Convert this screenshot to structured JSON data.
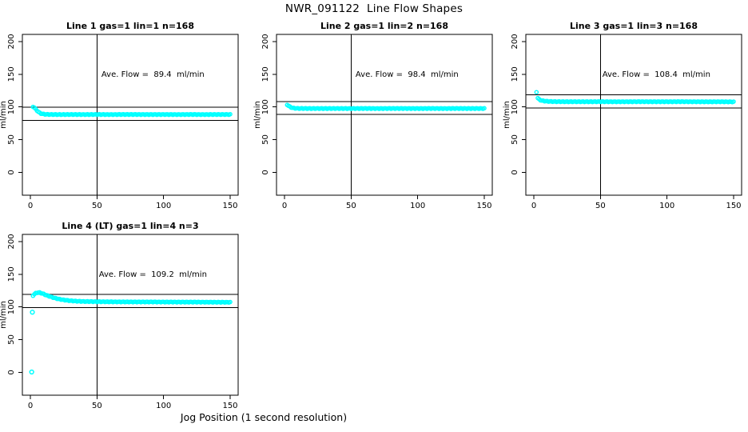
{
  "figure": {
    "title": "NWR_091122  Line Flow Shapes",
    "xlabel": "Jog Position (1 second resolution)",
    "colors": {
      "points": "#00FFFF",
      "axis": "#000000",
      "background": "#FFFFFF",
      "text": "#000000"
    }
  },
  "chart_data": [
    {
      "type": "scatter",
      "title": "Line 1 gas=1 lin=1 n=168",
      "ylabel": "ml/min",
      "ave_flow": 89.4,
      "ave_flow_label": "Ave. Flow =  89.4  ml/min",
      "x_ticks": [
        0,
        50,
        100,
        150
      ],
      "y_ticks": [
        0,
        50,
        100,
        150,
        200
      ],
      "xlim": [
        -6,
        156
      ],
      "ylim": [
        -35,
        211
      ],
      "vline_x": 50,
      "hlines": [
        99.4,
        79.4
      ],
      "points": {
        "x": [
          2,
          3,
          4,
          5,
          6,
          7,
          8,
          10,
          12,
          15,
          20,
          25,
          30,
          40,
          50,
          60,
          70,
          80,
          90,
          100,
          110,
          120,
          130,
          140,
          150
        ],
        "y": [
          100.5,
          99,
          96.5,
          94.5,
          92.5,
          91,
          90,
          89,
          88.7,
          88.5,
          88.4,
          88.4,
          88.5,
          88.4,
          88.5,
          88.4,
          88.5,
          88.5,
          88.4,
          88.5,
          88.4,
          88.5,
          88.4,
          88.5,
          88.5
        ]
      },
      "outliers": [],
      "below_scatter_offset": 2.1
    },
    {
      "type": "scatter",
      "title": "Line 2 gas=1 lin=2 n=168",
      "ylabel": "ml/min",
      "ave_flow": 98.4,
      "ave_flow_label": "Ave. Flow =  98.4  ml/min",
      "x_ticks": [
        0,
        50,
        100,
        150
      ],
      "y_ticks": [
        0,
        50,
        100,
        150,
        200
      ],
      "xlim": [
        -6,
        156
      ],
      "ylim": [
        -35,
        211
      ],
      "vline_x": 50,
      "hlines": [
        108.4,
        88.4
      ],
      "points": {
        "x": [
          2,
          3,
          4,
          5,
          6,
          7,
          8,
          10,
          12,
          15,
          20,
          25,
          30,
          40,
          50,
          60,
          70,
          80,
          90,
          100,
          110,
          120,
          130,
          140,
          150
        ],
        "y": [
          103.5,
          101.8,
          100.4,
          99.4,
          98.7,
          98.3,
          98,
          97.8,
          97.7,
          97.7,
          97.6,
          97.7,
          97.6,
          97.7,
          97.6,
          97.7,
          97.6,
          97.7,
          97.7,
          97.6,
          97.7,
          97.6,
          97.7,
          97.6,
          97.7
        ]
      },
      "outliers": [],
      "below_scatter_offset": 2.2
    },
    {
      "type": "scatter",
      "title": "Line 3 gas=1 lin=3 n=168",
      "ylabel": "ml/min",
      "ave_flow": 108.4,
      "ave_flow_label": "Ave. Flow =  108.4  ml/min",
      "x_ticks": [
        0,
        50,
        100,
        150
      ],
      "y_ticks": [
        0,
        50,
        100,
        150,
        200
      ],
      "xlim": [
        -6,
        156
      ],
      "ylim": [
        -35,
        211
      ],
      "vline_x": 50,
      "hlines": [
        118.4,
        98.4
      ],
      "points": {
        "x": [
          2,
          3,
          4,
          5,
          6,
          7,
          8,
          10,
          12,
          15,
          20,
          25,
          30,
          40,
          50,
          60,
          70,
          80,
          90,
          100,
          110,
          120,
          130,
          140,
          150
        ],
        "y": [
          123,
          113.5,
          111.5,
          110.5,
          109.8,
          109.4,
          109,
          108.6,
          108.4,
          108.2,
          108.1,
          108,
          108.1,
          108,
          108.1,
          108,
          108,
          108.1,
          108,
          108,
          108.1,
          108,
          107.9,
          108,
          107.8
        ]
      },
      "outliers": [],
      "below_scatter_offset": 2.1
    },
    {
      "type": "scatter",
      "title": "Line 4 (LT) gas=1 lin=4 n=3",
      "ylabel": "ml/min",
      "ave_flow": 109.2,
      "ave_flow_label": "Ave. Flow =  109.2  ml/min",
      "x_ticks": [
        0,
        50,
        100,
        150
      ],
      "y_ticks": [
        0,
        50,
        100,
        150,
        200
      ],
      "xlim": [
        -6,
        156
      ],
      "ylim": [
        -35,
        211
      ],
      "vline_x": 50,
      "hlines": [
        119.2,
        99.2
      ],
      "points": {
        "x": [
          2,
          3,
          4,
          5,
          6,
          7,
          8,
          10,
          12,
          15,
          18,
          21,
          25,
          30,
          35,
          40,
          50,
          60,
          70,
          80,
          90,
          100,
          110,
          120,
          130,
          140,
          150
        ],
        "y": [
          117.5,
          119.5,
          121,
          121.8,
          122,
          121.9,
          121.3,
          119.8,
          118,
          115.8,
          113.8,
          112.3,
          110.8,
          109.5,
          108.8,
          108.4,
          108.1,
          107.9,
          107.8,
          107.7,
          107.7,
          107.6,
          107.5,
          107.5,
          107.4,
          107.3,
          107.2
        ]
      },
      "outliers": [
        [
          1,
          0.5
        ],
        [
          1.5,
          92
        ]
      ],
      "below_scatter_offset": 2.4
    }
  ]
}
